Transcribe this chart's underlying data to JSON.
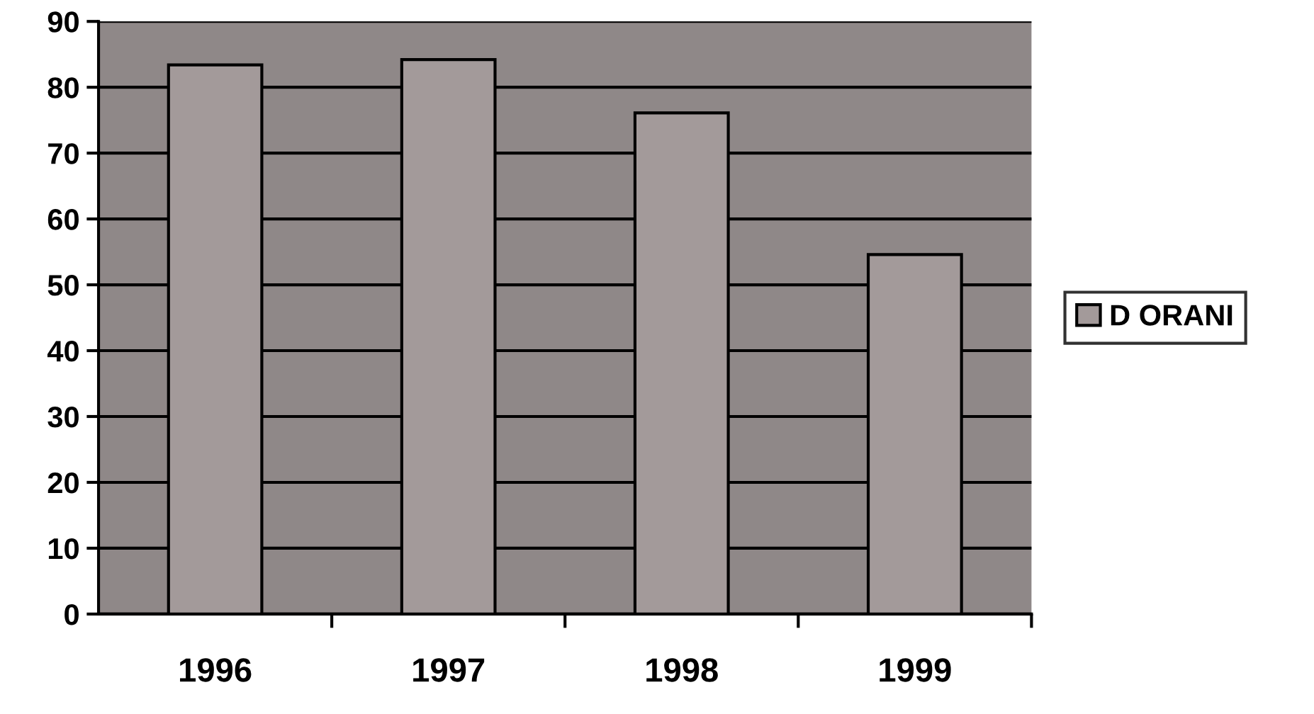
{
  "chart_data": {
    "type": "bar",
    "categories": [
      "1996",
      "1997",
      "1998",
      "1999"
    ],
    "series": [
      {
        "name": "D ORANI",
        "color": "#a39a9a",
        "values": [
          83.4,
          84.2,
          76.1,
          54.6
        ]
      }
    ],
    "ylim": [
      0,
      90
    ],
    "yticks": [
      0,
      10,
      20,
      30,
      40,
      50,
      60,
      70,
      80,
      90
    ],
    "grid": "y",
    "legend": "right"
  }
}
